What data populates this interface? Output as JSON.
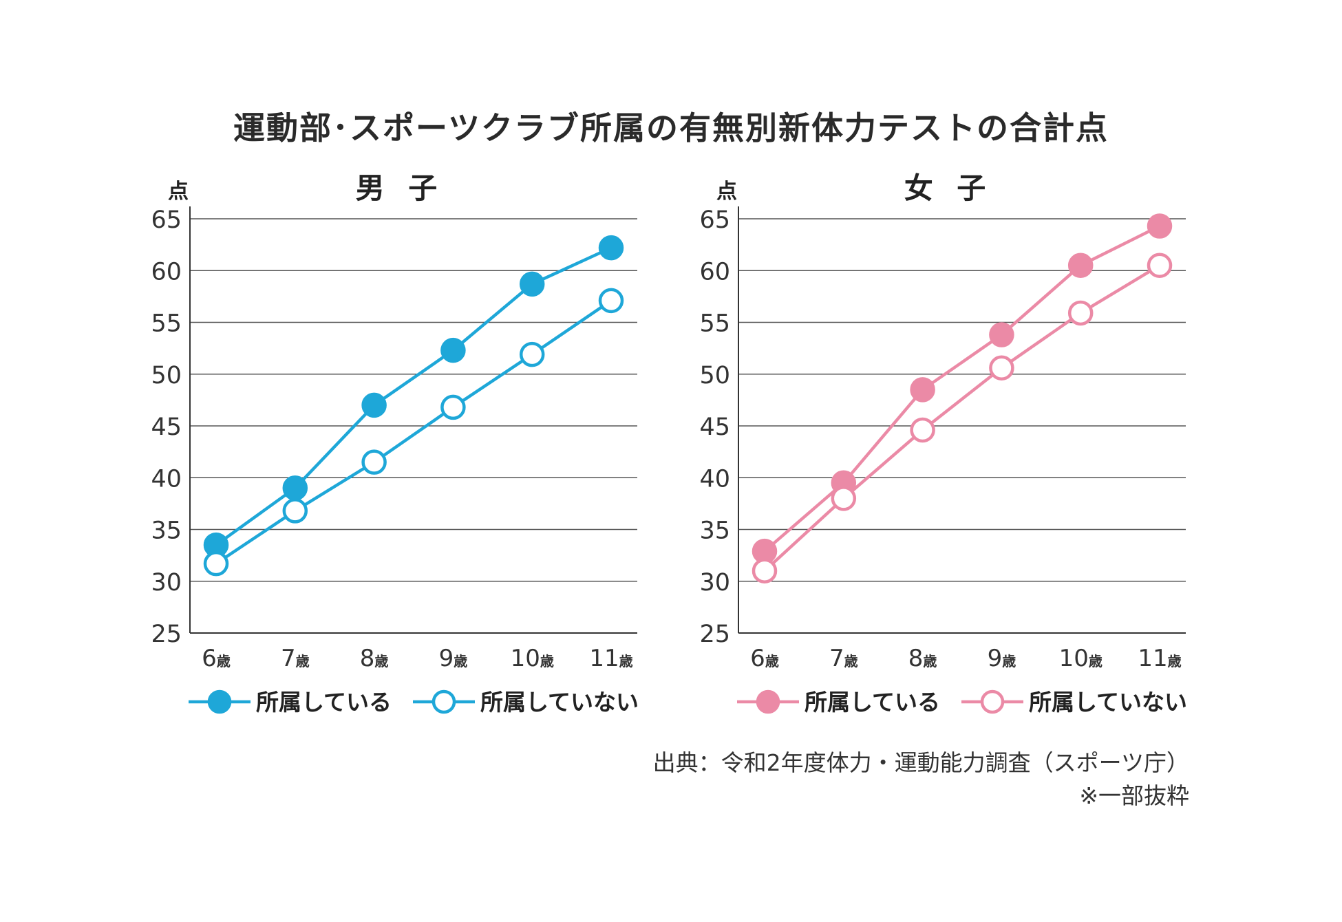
{
  "title": "運動部･スポーツクラブ所属の有無別新体力テストの合計点",
  "y_unit_label": "点",
  "source": "出典：令和2年度体力・運動能力調査（スポーツ庁）",
  "note": "※一部抜粋",
  "colors": {
    "boys": "#1ea7d8",
    "girls": "#eb8aa6",
    "grid": "#555555",
    "axis": "#333333"
  },
  "chart_data": [
    {
      "type": "line",
      "title": "男 子",
      "ylabel": "点",
      "ylim": [
        25,
        65
      ],
      "yticks": [
        25,
        30,
        35,
        40,
        45,
        50,
        55,
        60,
        65
      ],
      "grid": true,
      "legend_position": "bottom",
      "categories": [
        {
          "num": "6",
          "unit": "歳"
        },
        {
          "num": "7",
          "unit": "歳"
        },
        {
          "num": "8",
          "unit": "歳"
        },
        {
          "num": "9",
          "unit": "歳"
        },
        {
          "num": "10",
          "unit": "歳"
        },
        {
          "num": "11",
          "unit": "歳"
        }
      ],
      "series": [
        {
          "name": "所属している",
          "marker": "filled",
          "values": [
            33.5,
            39.0,
            47.0,
            52.3,
            58.7,
            62.2
          ]
        },
        {
          "name": "所属していない",
          "marker": "hollow",
          "values": [
            31.7,
            36.8,
            41.5,
            46.8,
            51.9,
            57.1
          ]
        }
      ]
    },
    {
      "type": "line",
      "title": "女 子",
      "ylabel": "点",
      "ylim": [
        25,
        65
      ],
      "yticks": [
        25,
        30,
        35,
        40,
        45,
        50,
        55,
        60,
        65
      ],
      "grid": true,
      "legend_position": "bottom",
      "categories": [
        {
          "num": "6",
          "unit": "歳"
        },
        {
          "num": "7",
          "unit": "歳"
        },
        {
          "num": "8",
          "unit": "歳"
        },
        {
          "num": "9",
          "unit": "歳"
        },
        {
          "num": "10",
          "unit": "歳"
        },
        {
          "num": "11",
          "unit": "歳"
        }
      ],
      "series": [
        {
          "name": "所属している",
          "marker": "filled",
          "values": [
            32.9,
            39.5,
            48.5,
            53.8,
            60.5,
            64.3
          ]
        },
        {
          "name": "所属していない",
          "marker": "hollow",
          "values": [
            31.0,
            38.0,
            44.6,
            50.6,
            55.9,
            60.5
          ]
        }
      ]
    }
  ]
}
